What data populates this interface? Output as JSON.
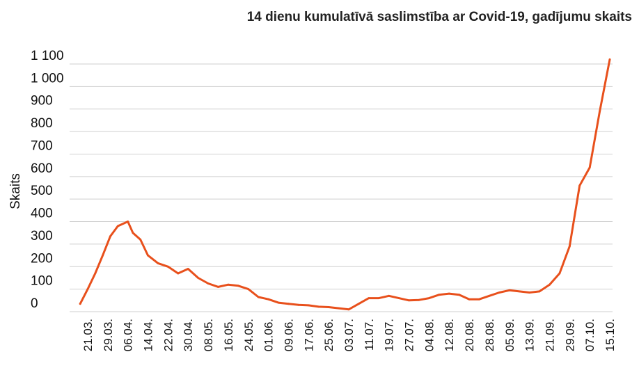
{
  "chart_data": {
    "type": "line",
    "title": "14 dienu kumulatīvā saslimstība ar Covid-19, gadījumu skaits",
    "xlabel": "",
    "ylabel": "Skaits",
    "ylim": [
      0,
      1100
    ],
    "grid": true,
    "color": "#e8501c",
    "y_ticks": [
      {
        "value": 0,
        "label": "0"
      },
      {
        "value": 100,
        "label": "100"
      },
      {
        "value": 200,
        "label": "200"
      },
      {
        "value": 300,
        "label": "300"
      },
      {
        "value": 400,
        "label": "400"
      },
      {
        "value": 500,
        "label": "500"
      },
      {
        "value": 600,
        "label": "600"
      },
      {
        "value": 700,
        "label": "700"
      },
      {
        "value": 800,
        "label": "800"
      },
      {
        "value": 900,
        "label": "900"
      },
      {
        "value": 1000,
        "label": "1 000"
      },
      {
        "value": 1100,
        "label": "1 100"
      }
    ],
    "x_ticks": [
      "21.03.",
      "29.03.",
      "06.04.",
      "14.04.",
      "22.04.",
      "30.04.",
      "08.05.",
      "16.05.",
      "24.05.",
      "01.06.",
      "09.06.",
      "17.06.",
      "25.06.",
      "03.07.",
      "11.07.",
      "19.07.",
      "27.07.",
      "04.08.",
      "12.08.",
      "20.08.",
      "28.08.",
      "05.09.",
      "13.09.",
      "21.09.",
      "29.09.",
      "07.10.",
      "15.10."
    ],
    "series": [
      {
        "x": [
          "18.03.",
          "21.03.",
          "24.03.",
          "27.03.",
          "30.03.",
          "02.04.",
          "06.04.",
          "08.04.",
          "11.04.",
          "14.04.",
          "18.04.",
          "22.04.",
          "26.04.",
          "30.04.",
          "04.05.",
          "08.05.",
          "12.05.",
          "16.05.",
          "20.05.",
          "24.05.",
          "28.05.",
          "01.06.",
          "05.06.",
          "09.06.",
          "13.06.",
          "17.06.",
          "21.06.",
          "25.06.",
          "29.06.",
          "03.07.",
          "07.07.",
          "11.07.",
          "15.07.",
          "19.07.",
          "23.07.",
          "27.07.",
          "31.07.",
          "04.08.",
          "08.08.",
          "12.08.",
          "16.08.",
          "20.08.",
          "24.08.",
          "28.08.",
          "01.09.",
          "05.09.",
          "09.09.",
          "13.09.",
          "17.09.",
          "21.09.",
          "25.09.",
          "29.09.",
          "03.10.",
          "07.10.",
          "11.10.",
          "15.10."
        ],
        "y": [
          35,
          100,
          170,
          250,
          335,
          380,
          400,
          350,
          320,
          250,
          215,
          200,
          170,
          190,
          150,
          125,
          110,
          120,
          115,
          100,
          65,
          55,
          40,
          35,
          30,
          28,
          22,
          20,
          15,
          10,
          35,
          60,
          60,
          70,
          60,
          50,
          52,
          60,
          75,
          80,
          75,
          55,
          55,
          70,
          85,
          95,
          90,
          85,
          90,
          120,
          170,
          290,
          560,
          640,
          890,
          1120
        ]
      }
    ]
  }
}
